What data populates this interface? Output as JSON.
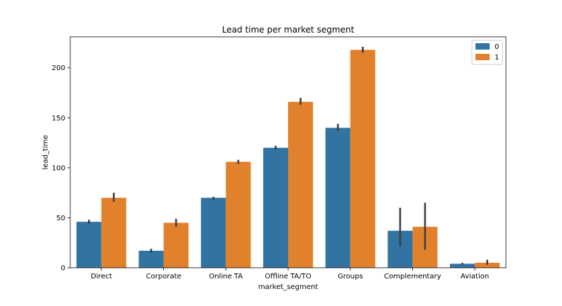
{
  "chart_data": {
    "type": "bar",
    "title": "Lead time per market segment",
    "xlabel": "market_segment",
    "ylabel": "lead_time",
    "categories": [
      "Direct",
      "Corporate",
      "Online TA",
      "Offline TA/TO",
      "Groups",
      "Complementary",
      "Aviation"
    ],
    "series": [
      {
        "name": "0",
        "color": "#3274a1",
        "values": [
          46,
          17,
          70,
          120,
          140,
          37,
          4
        ],
        "ci_low": [
          44,
          15,
          68,
          118,
          137,
          21,
          3
        ],
        "ci_high": [
          48,
          19,
          71,
          122,
          144,
          60,
          5
        ]
      },
      {
        "name": "1",
        "color": "#e1812c",
        "values": [
          70,
          45,
          106,
          166,
          218,
          41,
          5
        ],
        "ci_low": [
          66,
          41,
          104,
          163,
          215,
          18,
          3
        ],
        "ci_high": [
          75,
          49,
          108,
          170,
          221,
          65,
          8
        ]
      }
    ],
    "error_bar_color": "#3f3f3f",
    "ylim": [
      0,
      231
    ],
    "yticks": [
      0,
      50,
      100,
      150,
      200
    ],
    "grid": false,
    "legend_position": "top-right"
  }
}
